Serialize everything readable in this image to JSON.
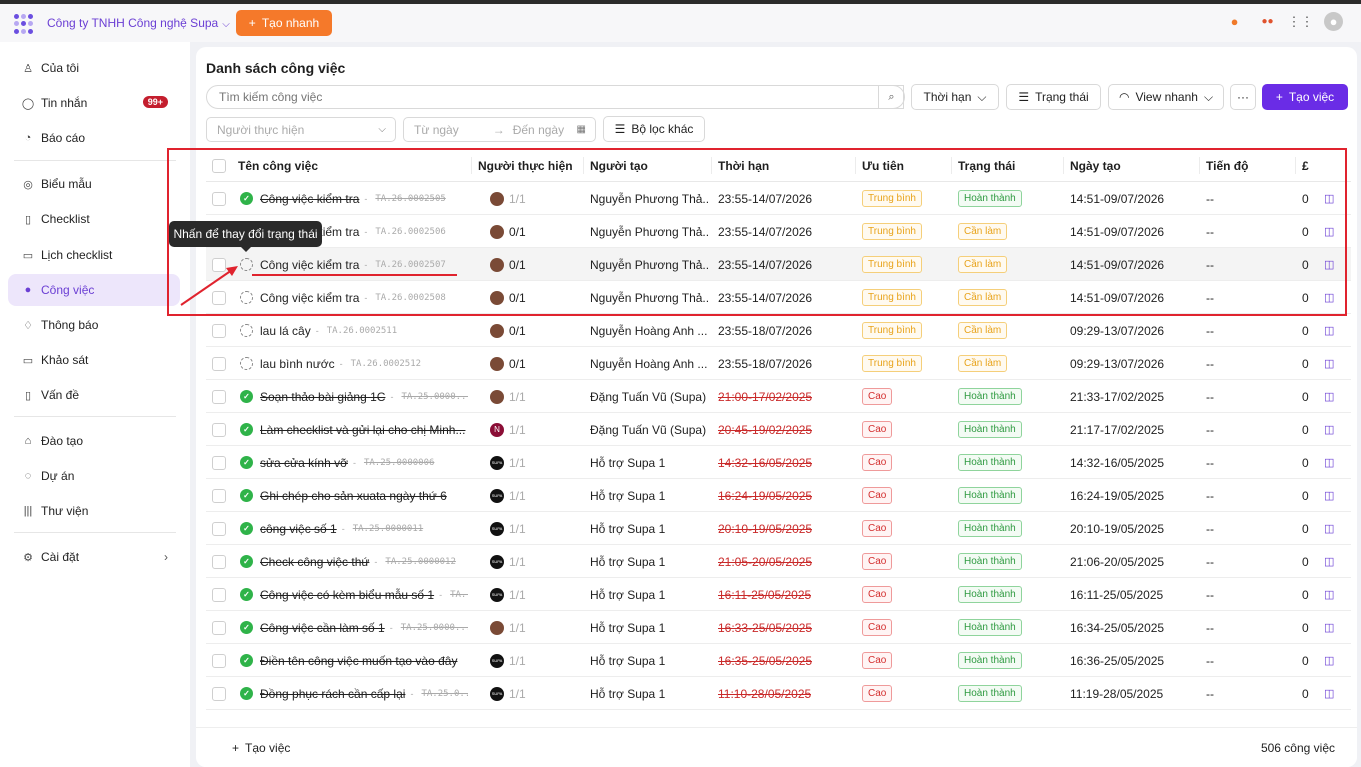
{
  "header": {
    "company": "Công ty TNHH Công nghệ Supa",
    "quick_create": "Tạo nhanh"
  },
  "sidebar": {
    "items": [
      {
        "label": "Của tôi",
        "icon": "user-icon"
      },
      {
        "label": "Tin nhắn",
        "icon": "chat-icon",
        "badge": "99+"
      },
      {
        "label": "Báo cáo",
        "icon": "report-icon"
      },
      {
        "label": "Biểu mẫu",
        "icon": "form-icon"
      },
      {
        "label": "Checklist",
        "icon": "checklist-icon"
      },
      {
        "label": "Lịch checklist",
        "icon": "calendar-icon"
      },
      {
        "label": "Công việc",
        "icon": "task-icon",
        "active": true
      },
      {
        "label": "Thông báo",
        "icon": "bell-icon"
      },
      {
        "label": "Khảo sát",
        "icon": "survey-icon"
      },
      {
        "label": "Vấn đề",
        "icon": "issue-icon"
      },
      {
        "label": "Đào tạo",
        "icon": "training-icon"
      },
      {
        "label": "Dự án",
        "icon": "project-icon"
      },
      {
        "label": "Thư viện",
        "icon": "library-icon"
      },
      {
        "label": "Cài đặt",
        "icon": "settings-icon"
      }
    ]
  },
  "main": {
    "title": "Danh sách công việc",
    "search_placeholder": "Tìm kiếm công việc",
    "btn_deadline": "Thời hạn",
    "btn_status": "Trạng thái",
    "btn_view": "View nhanh",
    "btn_more": "···",
    "btn_create": "Tạo việc",
    "filter_assignee": "Người thực hiện",
    "filter_from": "Từ ngày",
    "filter_to": "Đến ngày",
    "filter_other": "Bộ lọc khác"
  },
  "table": {
    "columns": [
      "Tên công việc",
      "Người thực hiện",
      "Người tạo",
      "Thời hạn",
      "Ưu tiên",
      "Trạng thái",
      "Ngày tạo",
      "Tiến độ",
      "£"
    ],
    "rows": [
      {
        "name": "Công việc kiểm tra",
        "code": "TA.26.0002505",
        "done": true,
        "strike": true,
        "av": "photo",
        "prog": "1/1",
        "creator": "Nguyễn Phương Thả...",
        "deadline": "23:55-14/07/2026",
        "late": false,
        "priority": "Trung bình",
        "pcls": "tb",
        "status": "Hoàn thành",
        "scls": "ht",
        "created": "14:51-09/07/2026",
        "progress": "--",
        "comments": "0"
      },
      {
        "name": "Công việc kiểm tra",
        "code": "TA.26.0002506",
        "done": false,
        "strike": false,
        "av": "photo",
        "prog": "0/1",
        "creator": "Nguyễn Phương Thả...",
        "deadline": "23:55-14/07/2026",
        "late": false,
        "priority": "Trung bình",
        "pcls": "tb",
        "status": "Cần làm",
        "scls": "cl",
        "created": "14:51-09/07/2026",
        "progress": "--",
        "comments": "0"
      },
      {
        "name": "Công việc kiểm tra",
        "code": "TA.26.0002507",
        "done": false,
        "strike": false,
        "av": "photo",
        "prog": "0/1",
        "creator": "Nguyễn Phương Thả...",
        "deadline": "23:55-14/07/2026",
        "late": false,
        "priority": "Trung bình",
        "pcls": "tb",
        "status": "Cần làm",
        "scls": "cl",
        "created": "14:51-09/07/2026",
        "progress": "--",
        "comments": "0"
      },
      {
        "name": "Công việc kiểm tra",
        "code": "TA.26.0002508",
        "done": false,
        "strike": false,
        "av": "photo",
        "prog": "0/1",
        "creator": "Nguyễn Phương Thả...",
        "deadline": "23:55-14/07/2026",
        "late": false,
        "priority": "Trung bình",
        "pcls": "tb",
        "status": "Cần làm",
        "scls": "cl",
        "created": "14:51-09/07/2026",
        "progress": "--",
        "comments": "0"
      },
      {
        "name": "lau lá cây",
        "code": "TA.26.0002511",
        "done": false,
        "strike": false,
        "av": "photo",
        "prog": "0/1",
        "creator": "Nguyễn Hoàng Anh ...",
        "deadline": "23:55-18/07/2026",
        "late": false,
        "priority": "Trung bình",
        "pcls": "tb",
        "status": "Cần làm",
        "scls": "cl",
        "created": "09:29-13/07/2026",
        "progress": "--",
        "comments": "0"
      },
      {
        "name": "lau bình nước",
        "code": "TA.26.0002512",
        "done": false,
        "strike": false,
        "av": "photo",
        "prog": "0/1",
        "creator": "Nguyễn Hoàng Anh ...",
        "deadline": "23:55-18/07/2026",
        "late": false,
        "priority": "Trung bình",
        "pcls": "tb",
        "status": "Cần làm",
        "scls": "cl",
        "created": "09:29-13/07/2026",
        "progress": "--",
        "comments": "0"
      },
      {
        "name": "Soạn thảo bài giảng 1C",
        "code": "TA.25.0000...",
        "done": true,
        "strike": true,
        "av": "photo",
        "prog": "1/1",
        "creator": "Đặng Tuấn Vũ (Supa)",
        "deadline": "21:00-17/02/2025",
        "late": true,
        "priority": "Cao",
        "pcls": "cao",
        "status": "Hoàn thành",
        "scls": "ht",
        "created": "21:33-17/02/2025",
        "progress": "--",
        "comments": "0"
      },
      {
        "name": "Làm checklist và gửi lại cho chị Minh...",
        "code": "",
        "done": true,
        "strike": true,
        "av": "n",
        "prog": "1/1",
        "creator": "Đặng Tuấn Vũ (Supa)",
        "deadline": "20:45-19/02/2025",
        "late": true,
        "priority": "Cao",
        "pcls": "cao",
        "status": "Hoàn thành",
        "scls": "ht",
        "created": "21:17-17/02/2025",
        "progress": "--",
        "comments": "0"
      },
      {
        "name": "sửa cửa kính vỡ",
        "code": "TA.25.0000006",
        "done": true,
        "strike": true,
        "av": "supa",
        "prog": "1/1",
        "creator": "Hỗ trợ Supa 1",
        "deadline": "14:32-16/05/2025",
        "late": true,
        "priority": "Cao",
        "pcls": "cao",
        "status": "Hoàn thành",
        "scls": "ht",
        "created": "14:32-16/05/2025",
        "progress": "--",
        "comments": "0"
      },
      {
        "name": "Ghi chép cho sản xuata ngày thứ 6",
        "code": "",
        "done": true,
        "strike": true,
        "av": "supa",
        "prog": "1/1",
        "creator": "Hỗ trợ Supa 1",
        "deadline": "16:24-19/05/2025",
        "late": true,
        "priority": "Cao",
        "pcls": "cao",
        "status": "Hoàn thành",
        "scls": "ht",
        "created": "16:24-19/05/2025",
        "progress": "--",
        "comments": "0"
      },
      {
        "name": "công việc số 1",
        "code": "TA.25.0000011",
        "done": true,
        "strike": true,
        "av": "supa",
        "prog": "1/1",
        "creator": "Hỗ trợ Supa 1",
        "deadline": "20:10-19/05/2025",
        "late": true,
        "priority": "Cao",
        "pcls": "cao",
        "status": "Hoàn thành",
        "scls": "ht",
        "created": "20:10-19/05/2025",
        "progress": "--",
        "comments": "0"
      },
      {
        "name": "Check công việc thứ",
        "code": "TA.25.0000012",
        "done": true,
        "strike": true,
        "av": "supa",
        "prog": "1/1",
        "creator": "Hỗ trợ Supa 1",
        "deadline": "21:05-20/05/2025",
        "late": true,
        "priority": "Cao",
        "pcls": "cao",
        "status": "Hoàn thành",
        "scls": "ht",
        "created": "21:06-20/05/2025",
        "progress": "--",
        "comments": "0"
      },
      {
        "name": "Công việc có kèm biểu mẫu số 1",
        "code": "TA...",
        "done": true,
        "strike": true,
        "av": "supa",
        "prog": "1/1",
        "creator": "Hỗ trợ Supa 1",
        "deadline": "16:11-25/05/2025",
        "late": true,
        "priority": "Cao",
        "pcls": "cao",
        "status": "Hoàn thành",
        "scls": "ht",
        "created": "16:11-25/05/2025",
        "progress": "--",
        "comments": "0"
      },
      {
        "name": "Công việc cần làm số 1",
        "code": "TA.25.0000...",
        "done": true,
        "strike": true,
        "av": "photo",
        "prog": "1/1",
        "creator": "Hỗ trợ Supa 1",
        "deadline": "16:33-25/05/2025",
        "late": true,
        "priority": "Cao",
        "pcls": "cao",
        "status": "Hoàn thành",
        "scls": "ht",
        "created": "16:34-25/05/2025",
        "progress": "--",
        "comments": "0"
      },
      {
        "name": "Điền tên công việc muốn tạo vào đây",
        "code": "",
        "done": true,
        "strike": true,
        "av": "supa",
        "prog": "1/1",
        "creator": "Hỗ trợ Supa 1",
        "deadline": "16:35-25/05/2025",
        "late": true,
        "priority": "Cao",
        "pcls": "cao",
        "status": "Hoàn thành",
        "scls": "ht",
        "created": "16:36-25/05/2025",
        "progress": "--",
        "comments": "0"
      },
      {
        "name": "Đồng phục rách cần cấp lại",
        "code": "TA.25.0...",
        "done": true,
        "strike": true,
        "av": "supa",
        "prog": "1/1",
        "creator": "Hỗ trợ Supa 1",
        "deadline": "11:10-28/05/2025",
        "late": true,
        "priority": "Cao",
        "pcls": "cao",
        "status": "Hoàn thành",
        "scls": "ht",
        "created": "11:19-28/05/2025",
        "progress": "--",
        "comments": "0"
      }
    ]
  },
  "tooltip": "Nhấn để thay đổi trạng thái",
  "footer": {
    "add_task": "Tạo việc",
    "count": "506 công việc"
  }
}
